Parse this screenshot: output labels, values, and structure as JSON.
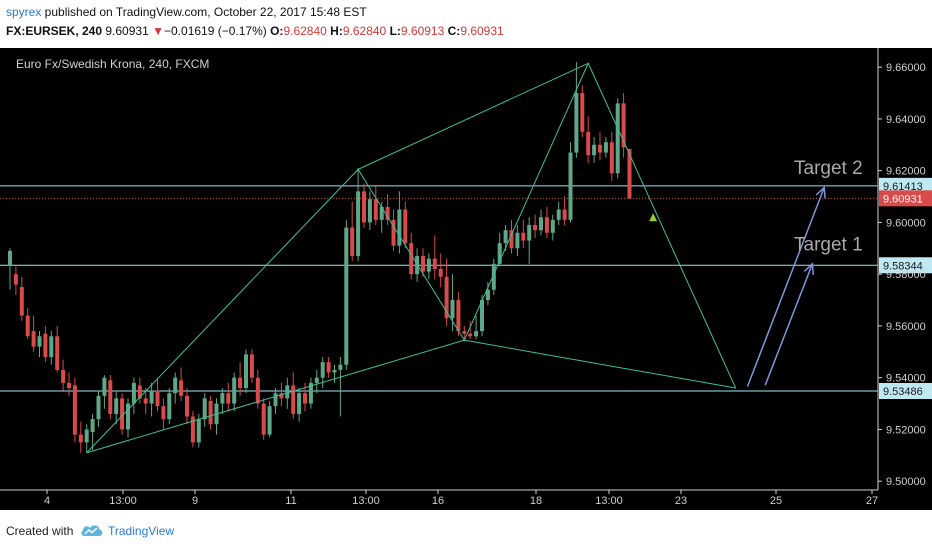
{
  "header": {
    "username": "spyrex",
    "published_text": " published on TradingView.com, October 22, 2017 15:48 EST",
    "symbol": "FX:EURSEK, 240",
    "last": "9.60931",
    "change_arrow": "▼",
    "change": "−0.01619 (−0.17%)",
    "o_label": "O:",
    "o_value": "9.62840",
    "h_label": "H:",
    "h_value": "9.62840",
    "l_label": "L:",
    "l_value": "9.60913",
    "c_label": "C:",
    "c_value": "9.60931"
  },
  "footer": {
    "created_with": "Created with",
    "brand": "TradingView",
    "logo_icon": "tradingview-cloud-icon"
  },
  "colors": {
    "background": "#000000",
    "up": "#5fa887",
    "down": "#d94a4a",
    "pattern": "#3dbf9a",
    "levels": "#9fe3ef",
    "arrows": "#7d97d9",
    "target_text": "#a9a9a9",
    "last_price_bg": "#d94a4a",
    "user_link": "#2a7bd4"
  },
  "chart_data": {
    "type": "candlestick",
    "title": "Euro Fx/Swedish Krona, 240, FXCM",
    "y_ticks": [
      "9.66000",
      "9.64000",
      "9.62000",
      "9.60000",
      "9.58000",
      "9.56000",
      "9.54000",
      "9.52000",
      "9.50000"
    ],
    "ylim": [
      9.4966,
      9.6674
    ],
    "x_ticks": [
      "4",
      "13:00",
      "9",
      "11",
      "13:00",
      "16",
      "18",
      "13:00",
      "23",
      "25",
      "27"
    ],
    "horizontal_levels": [
      {
        "value": 9.61413,
        "label": "9.61413"
      },
      {
        "value": 9.58344,
        "label": "9.58344"
      },
      {
        "value": 9.53486,
        "label": "9.53486"
      }
    ],
    "last_price": {
      "value": 9.60931,
      "label": "9.60931"
    },
    "annotations": [
      {
        "text": "Target 2",
        "value": 9.6163
      },
      {
        "text": "Target 1",
        "value": 9.5869
      }
    ],
    "pattern_points": [
      {
        "bar": 13,
        "value": 9.511
      },
      {
        "bar": 59,
        "value": 9.6205
      },
      {
        "bar": 77,
        "value": 9.5545
      },
      {
        "bar": 98,
        "value": 9.6615
      },
      {
        "bar": 123,
        "value": 9.536
      }
    ],
    "extra_legs": [
      {
        "from": 0,
        "to": 2
      },
      {
        "from": 2,
        "to": 4
      },
      {
        "from": 1,
        "to": 3
      }
    ],
    "arrows": [
      {
        "from_bar": 125,
        "from_value": 9.5366,
        "to_bar": 138,
        "to_value": 9.6135
      },
      {
        "from_bar": 128,
        "from_value": 9.5371,
        "to_bar": 136,
        "to_value": 9.584
      }
    ],
    "signal_marker": {
      "bar": 109,
      "value": 9.602
    },
    "candles": [
      {
        "o": 9.5835,
        "h": 9.59,
        "l": 9.574,
        "c": 9.589
      },
      {
        "o": 9.58,
        "h": 9.583,
        "l": 9.572,
        "c": 9.576
      },
      {
        "o": 9.575,
        "h": 9.579,
        "l": 9.562,
        "c": 9.564
      },
      {
        "o": 9.564,
        "h": 9.567,
        "l": 9.555,
        "c": 9.556
      },
      {
        "o": 9.558,
        "h": 9.564,
        "l": 9.55,
        "c": 9.552
      },
      {
        "o": 9.552,
        "h": 9.558,
        "l": 9.548,
        "c": 9.556
      },
      {
        "o": 9.557,
        "h": 9.56,
        "l": 9.546,
        "c": 9.548
      },
      {
        "o": 9.548,
        "h": 9.558,
        "l": 9.545,
        "c": 9.556
      },
      {
        "o": 9.556,
        "h": 9.56,
        "l": 9.542,
        "c": 9.543
      },
      {
        "o": 9.543,
        "h": 9.547,
        "l": 9.535,
        "c": 9.538
      },
      {
        "o": 9.538,
        "h": 9.542,
        "l": 9.533,
        "c": 9.536
      },
      {
        "o": 9.537,
        "h": 9.54,
        "l": 9.515,
        "c": 9.518
      },
      {
        "o": 9.518,
        "h": 9.523,
        "l": 9.511,
        "c": 9.515
      },
      {
        "o": 9.515,
        "h": 9.522,
        "l": 9.511,
        "c": 9.52
      },
      {
        "o": 9.519,
        "h": 9.526,
        "l": 9.512,
        "c": 9.524
      },
      {
        "o": 9.524,
        "h": 9.535,
        "l": 9.521,
        "c": 9.533
      },
      {
        "o": 9.533,
        "h": 9.541,
        "l": 9.528,
        "c": 9.54
      },
      {
        "o": 9.539,
        "h": 9.541,
        "l": 9.524,
        "c": 9.526
      },
      {
        "o": 9.526,
        "h": 9.535,
        "l": 9.522,
        "c": 9.532
      },
      {
        "o": 9.532,
        "h": 9.534,
        "l": 9.518,
        "c": 9.52
      },
      {
        "o": 9.52,
        "h": 9.532,
        "l": 9.517,
        "c": 9.53
      },
      {
        "o": 9.53,
        "h": 9.54,
        "l": 9.526,
        "c": 9.538
      },
      {
        "o": 9.537,
        "h": 9.54,
        "l": 9.53,
        "c": 9.532
      },
      {
        "o": 9.532,
        "h": 9.536,
        "l": 9.526,
        "c": 9.53
      },
      {
        "o": 9.53,
        "h": 9.538,
        "l": 9.525,
        "c": 9.535
      },
      {
        "o": 9.535,
        "h": 9.54,
        "l": 9.527,
        "c": 9.529
      },
      {
        "o": 9.529,
        "h": 9.532,
        "l": 9.52,
        "c": 9.524
      },
      {
        "o": 9.524,
        "h": 9.536,
        "l": 9.522,
        "c": 9.534
      },
      {
        "o": 9.534,
        "h": 9.542,
        "l": 9.53,
        "c": 9.54
      },
      {
        "o": 9.539,
        "h": 9.544,
        "l": 9.531,
        "c": 9.533
      },
      {
        "o": 9.533,
        "h": 9.536,
        "l": 9.522,
        "c": 9.525
      },
      {
        "o": 9.525,
        "h": 9.527,
        "l": 9.513,
        "c": 9.515
      },
      {
        "o": 9.515,
        "h": 9.526,
        "l": 9.513,
        "c": 9.524
      },
      {
        "o": 9.524,
        "h": 9.534,
        "l": 9.521,
        "c": 9.532
      },
      {
        "o": 9.531,
        "h": 9.533,
        "l": 9.52,
        "c": 9.522
      },
      {
        "o": 9.522,
        "h": 9.532,
        "l": 9.518,
        "c": 9.53
      },
      {
        "o": 9.53,
        "h": 9.536,
        "l": 9.526,
        "c": 9.534
      },
      {
        "o": 9.534,
        "h": 9.538,
        "l": 9.527,
        "c": 9.53
      },
      {
        "o": 9.53,
        "h": 9.542,
        "l": 9.527,
        "c": 9.54
      },
      {
        "o": 9.54,
        "h": 9.546,
        "l": 9.533,
        "c": 9.536
      },
      {
        "o": 9.536,
        "h": 9.551,
        "l": 9.534,
        "c": 9.549
      },
      {
        "o": 9.549,
        "h": 9.551,
        "l": 9.538,
        "c": 9.54
      },
      {
        "o": 9.54,
        "h": 9.543,
        "l": 9.528,
        "c": 9.53
      },
      {
        "o": 9.53,
        "h": 9.532,
        "l": 9.516,
        "c": 9.518
      },
      {
        "o": 9.518,
        "h": 9.531,
        "l": 9.517,
        "c": 9.529
      },
      {
        "o": 9.529,
        "h": 9.536,
        "l": 9.526,
        "c": 9.534
      },
      {
        "o": 9.534,
        "h": 9.538,
        "l": 9.529,
        "c": 9.532
      },
      {
        "o": 9.532,
        "h": 9.54,
        "l": 9.528,
        "c": 9.537
      },
      {
        "o": 9.537,
        "h": 9.542,
        "l": 9.524,
        "c": 9.526
      },
      {
        "o": 9.526,
        "h": 9.536,
        "l": 9.523,
        "c": 9.534
      },
      {
        "o": 9.534,
        "h": 9.538,
        "l": 9.527,
        "c": 9.53
      },
      {
        "o": 9.53,
        "h": 9.54,
        "l": 9.528,
        "c": 9.538
      },
      {
        "o": 9.538,
        "h": 9.543,
        "l": 9.534,
        "c": 9.54
      },
      {
        "o": 9.54,
        "h": 9.548,
        "l": 9.536,
        "c": 9.546
      },
      {
        "o": 9.546,
        "h": 9.548,
        "l": 9.54,
        "c": 9.542
      },
      {
        "o": 9.542,
        "h": 9.545,
        "l": 9.538,
        "c": 9.543
      },
      {
        "o": 9.543,
        "h": 9.548,
        "l": 9.525,
        "c": 9.545
      },
      {
        "o": 9.545,
        "h": 9.601,
        "l": 9.543,
        "c": 9.598
      },
      {
        "o": 9.598,
        "h": 9.608,
        "l": 9.585,
        "c": 9.587
      },
      {
        "o": 9.587,
        "h": 9.621,
        "l": 9.585,
        "c": 9.612
      },
      {
        "o": 9.612,
        "h": 9.615,
        "l": 9.598,
        "c": 9.6
      },
      {
        "o": 9.6,
        "h": 9.612,
        "l": 9.597,
        "c": 9.609
      },
      {
        "o": 9.609,
        "h": 9.614,
        "l": 9.599,
        "c": 9.601
      },
      {
        "o": 9.601,
        "h": 9.608,
        "l": 9.596,
        "c": 9.606
      },
      {
        "o": 9.606,
        "h": 9.611,
        "l": 9.599,
        "c": 9.601
      },
      {
        "o": 9.601,
        "h": 9.605,
        "l": 9.589,
        "c": 9.591
      },
      {
        "o": 9.591,
        "h": 9.612,
        "l": 9.588,
        "c": 9.605
      },
      {
        "o": 9.605,
        "h": 9.608,
        "l": 9.59,
        "c": 9.592
      },
      {
        "o": 9.592,
        "h": 9.596,
        "l": 9.578,
        "c": 9.58
      },
      {
        "o": 9.58,
        "h": 9.59,
        "l": 9.577,
        "c": 9.587
      },
      {
        "o": 9.587,
        "h": 9.59,
        "l": 9.579,
        "c": 9.581
      },
      {
        "o": 9.581,
        "h": 9.588,
        "l": 9.578,
        "c": 9.586
      },
      {
        "o": 9.586,
        "h": 9.595,
        "l": 9.578,
        "c": 9.582
      },
      {
        "o": 9.582,
        "h": 9.588,
        "l": 9.575,
        "c": 9.579
      },
      {
        "o": 9.579,
        "h": 9.586,
        "l": 9.56,
        "c": 9.563
      },
      {
        "o": 9.563,
        "h": 9.58,
        "l": 9.558,
        "c": 9.57
      },
      {
        "o": 9.57,
        "h": 9.573,
        "l": 9.556,
        "c": 9.558
      },
      {
        "o": 9.558,
        "h": 9.56,
        "l": 9.554,
        "c": 9.557
      },
      {
        "o": 9.557,
        "h": 9.562,
        "l": 9.555,
        "c": 9.556
      },
      {
        "o": 9.556,
        "h": 9.564,
        "l": 9.555,
        "c": 9.558
      },
      {
        "o": 9.558,
        "h": 9.572,
        "l": 9.556,
        "c": 9.57
      },
      {
        "o": 9.57,
        "h": 9.577,
        "l": 9.568,
        "c": 9.574
      },
      {
        "o": 9.574,
        "h": 9.586,
        "l": 9.572,
        "c": 9.584
      },
      {
        "o": 9.584,
        "h": 9.596,
        "l": 9.583,
        "c": 9.592
      },
      {
        "o": 9.592,
        "h": 9.599,
        "l": 9.589,
        "c": 9.597
      },
      {
        "o": 9.597,
        "h": 9.601,
        "l": 9.588,
        "c": 9.59
      },
      {
        "o": 9.59,
        "h": 9.599,
        "l": 9.587,
        "c": 9.596
      },
      {
        "o": 9.596,
        "h": 9.601,
        "l": 9.59,
        "c": 9.593
      },
      {
        "o": 9.593,
        "h": 9.602,
        "l": 9.584,
        "c": 9.599
      },
      {
        "o": 9.599,
        "h": 9.603,
        "l": 9.594,
        "c": 9.597
      },
      {
        "o": 9.597,
        "h": 9.605,
        "l": 9.595,
        "c": 9.602
      },
      {
        "o": 9.602,
        "h": 9.606,
        "l": 9.594,
        "c": 9.596
      },
      {
        "o": 9.596,
        "h": 9.603,
        "l": 9.593,
        "c": 9.601
      },
      {
        "o": 9.601,
        "h": 9.608,
        "l": 9.599,
        "c": 9.605
      },
      {
        "o": 9.605,
        "h": 9.61,
        "l": 9.599,
        "c": 9.601
      },
      {
        "o": 9.601,
        "h": 9.631,
        "l": 9.6,
        "c": 9.627
      },
      {
        "o": 9.627,
        "h": 9.662,
        "l": 9.625,
        "c": 9.65
      },
      {
        "o": 9.65,
        "h": 9.653,
        "l": 9.633,
        "c": 9.635
      },
      {
        "o": 9.635,
        "h": 9.641,
        "l": 9.623,
        "c": 9.626
      },
      {
        "o": 9.626,
        "h": 9.633,
        "l": 9.623,
        "c": 9.63
      },
      {
        "o": 9.63,
        "h": 9.635,
        "l": 9.624,
        "c": 9.627
      },
      {
        "o": 9.627,
        "h": 9.633,
        "l": 9.625,
        "c": 9.631
      },
      {
        "o": 9.631,
        "h": 9.635,
        "l": 9.616,
        "c": 9.619
      },
      {
        "o": 9.619,
        "h": 9.648,
        "l": 9.617,
        "c": 9.646
      },
      {
        "o": 9.646,
        "h": 9.65,
        "l": 9.625,
        "c": 9.629
      },
      {
        "o": 9.6284,
        "h": 9.6284,
        "l": 9.6091,
        "c": 9.6093
      }
    ]
  }
}
